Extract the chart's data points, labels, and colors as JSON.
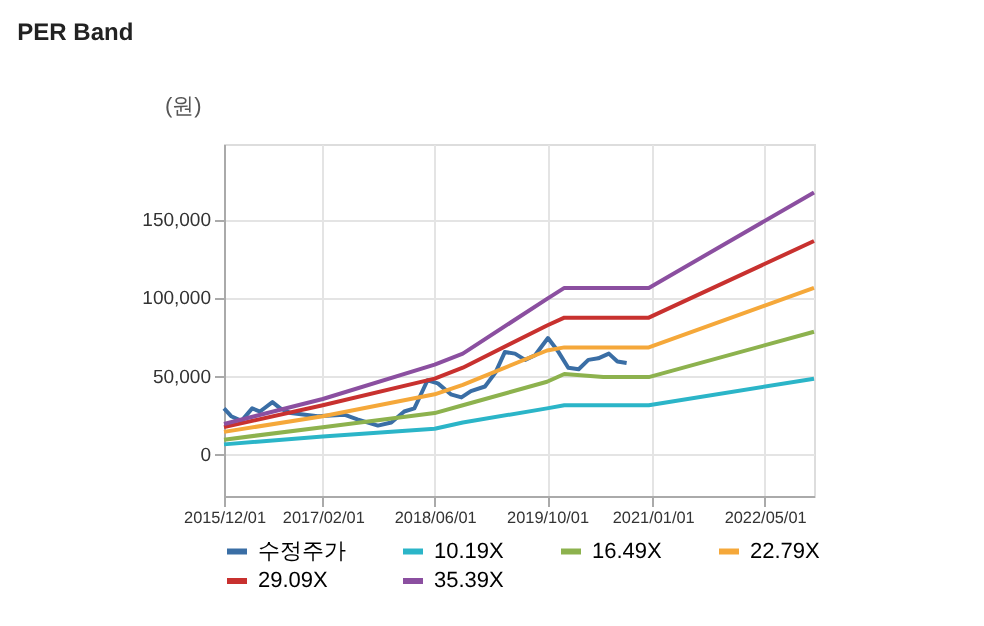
{
  "chart_data": {
    "type": "line",
    "title": "PER Band",
    "ylabel": "(원)",
    "xlim": [
      "2015-12-01",
      "2022-12-01"
    ],
    "xticks": [
      {
        "value": "2015-12-01",
        "label": "2015/12/01"
      },
      {
        "value": "2017-02-01",
        "label": "2017/02/01"
      },
      {
        "value": "2018-06-01",
        "label": "2018/06/01"
      },
      {
        "value": "2019-10-01",
        "label": "2019/10/01"
      },
      {
        "value": "2021-01-01",
        "label": "2021/01/01"
      },
      {
        "value": "2022-05-01",
        "label": "2022/05/01"
      }
    ],
    "ylim": [
      -27000,
      198000
    ],
    "yticks": [
      {
        "value": 0,
        "label": "0"
      },
      {
        "value": 50000,
        "label": "50,000"
      },
      {
        "value": 100000,
        "label": "100,000"
      },
      {
        "value": 150000,
        "label": "150,000"
      }
    ],
    "grid": true,
    "legend": "bottom",
    "line_style": "solid",
    "series": [
      {
        "name": "수정주가",
        "color": "#3a6ea5",
        "x": [
          "2015-12-01",
          "2016-01-01",
          "2016-02-15",
          "2016-04-01",
          "2016-05-05",
          "2016-06-28",
          "2016-08-01",
          "2016-09-15",
          "2017-01-10",
          "2017-05-05",
          "2017-07-01",
          "2017-09-28",
          "2017-11-25",
          "2018-01-20",
          "2018-03-05",
          "2018-05-01",
          "2018-06-15",
          "2018-08-10",
          "2018-09-25",
          "2018-11-05",
          "2019-01-05",
          "2019-02-20",
          "2019-04-01",
          "2019-05-15",
          "2019-06-28",
          "2019-08-10",
          "2019-10-05",
          "2019-11-20",
          "2020-01-01",
          "2020-02-15",
          "2020-03-28",
          "2020-05-10",
          "2020-06-25",
          "2020-08-01",
          "2020-09-10"
        ],
        "values": [
          29000,
          24000,
          21000,
          29000,
          27000,
          33000,
          29000,
          26000,
          24000,
          25000,
          22000,
          18000,
          20000,
          27000,
          29000,
          47000,
          45000,
          38000,
          36000,
          40000,
          43000,
          52000,
          65000,
          64000,
          60000,
          63000,
          74000,
          65000,
          55000,
          54000,
          60000,
          61000,
          64000,
          59000,
          58000
        ]
      },
      {
        "name": "10.19X",
        "color": "#2bb5c8",
        "x": [
          "2015-12-01",
          "2017-02-01",
          "2018-06-01",
          "2018-10-01",
          "2019-10-01",
          "2019-12-15",
          "2020-12-15",
          "2022-12-01"
        ],
        "values": [
          6000,
          11000,
          16000,
          20000,
          29000,
          31000,
          31000,
          48000
        ]
      },
      {
        "name": "16.49X",
        "color": "#8db24e",
        "x": [
          "2015-12-01",
          "2017-02-01",
          "2018-06-01",
          "2018-10-01",
          "2019-10-01",
          "2019-12-15",
          "2020-06-01",
          "2020-12-15",
          "2022-12-01"
        ],
        "values": [
          9000,
          17000,
          26000,
          31000,
          46000,
          51000,
          49000,
          49000,
          78000
        ]
      },
      {
        "name": "22.79X",
        "color": "#f5a83a",
        "x": [
          "2015-12-01",
          "2017-02-01",
          "2018-06-01",
          "2018-10-01",
          "2019-10-01",
          "2019-12-15",
          "2020-12-15",
          "2022-12-01"
        ],
        "values": [
          14000,
          24000,
          38000,
          44000,
          66000,
          68000,
          68000,
          106000
        ]
      },
      {
        "name": "29.09X",
        "color": "#c8312f",
        "x": [
          "2015-12-01",
          "2017-02-01",
          "2018-06-01",
          "2018-10-01",
          "2019-10-01",
          "2019-12-15",
          "2020-12-15",
          "2022-12-01"
        ],
        "values": [
          17000,
          31000,
          48000,
          55000,
          82000,
          87000,
          87000,
          136000
        ]
      },
      {
        "name": "35.39X",
        "color": "#8b4fa0",
        "x": [
          "2015-12-01",
          "2017-02-01",
          "2018-06-01",
          "2018-10-01",
          "2019-10-01",
          "2019-12-15",
          "2020-12-15",
          "2022-12-01"
        ],
        "values": [
          19000,
          35000,
          57000,
          64000,
          99000,
          106000,
          106000,
          167000
        ]
      }
    ]
  }
}
